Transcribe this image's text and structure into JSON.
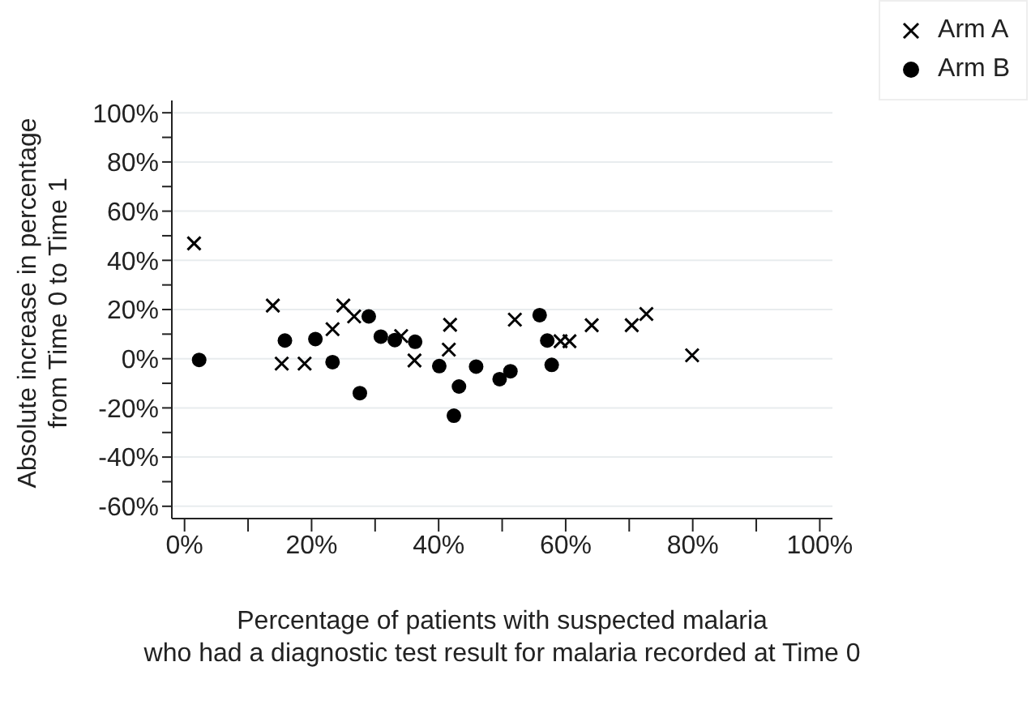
{
  "chart_data": {
    "type": "scatter",
    "xlabel": "Percentage of patients with suspected malaria\nwho had a diagnostic test result for malaria recorded at Time 0",
    "ylabel": "Absolute increase in percentage\nfrom Time 0 to Time 1",
    "xlim": [
      -2,
      102
    ],
    "ylim": [
      -65,
      105
    ],
    "xticks": [
      {
        "value": 0,
        "label": "0%"
      },
      {
        "value": 10,
        "label": null
      },
      {
        "value": 20,
        "label": "20%"
      },
      {
        "value": 30,
        "label": null
      },
      {
        "value": 40,
        "label": "40%"
      },
      {
        "value": 50,
        "label": null
      },
      {
        "value": 60,
        "label": "60%"
      },
      {
        "value": 70,
        "label": null
      },
      {
        "value": 80,
        "label": "80%"
      },
      {
        "value": 90,
        "label": null
      },
      {
        "value": 100,
        "label": "100%"
      }
    ],
    "yticks": [
      {
        "value": -60,
        "label": "-60%"
      },
      {
        "value": -50,
        "label": null
      },
      {
        "value": -40,
        "label": "-40%"
      },
      {
        "value": -30,
        "label": null
      },
      {
        "value": -20,
        "label": "-20%"
      },
      {
        "value": -10,
        "label": null
      },
      {
        "value": 0,
        "label": "0%"
      },
      {
        "value": 10,
        "label": null
      },
      {
        "value": 20,
        "label": "20%"
      },
      {
        "value": 30,
        "label": null
      },
      {
        "value": 40,
        "label": "40%"
      },
      {
        "value": 50,
        "label": null
      },
      {
        "value": 60,
        "label": "60%"
      },
      {
        "value": 70,
        "label": null
      },
      {
        "value": 80,
        "label": "80%"
      },
      {
        "value": 90,
        "label": null
      },
      {
        "value": 100,
        "label": "100%"
      }
    ],
    "grid": "y",
    "legend": "top right",
    "series": [
      {
        "name": "Arm A",
        "color": "#000000",
        "marker": "cross",
        "x": [
          1.5,
          13.9,
          15.3,
          18.9,
          23.3,
          25,
          26.7,
          34.1,
          36.2,
          41.8,
          41.6,
          52,
          59.2,
          60.6,
          64.1,
          70.4,
          72.7,
          79.9
        ],
        "values": [
          46.9,
          21.6,
          -2,
          -2,
          12,
          21.6,
          17.2,
          9.2,
          -0.7,
          13.8,
          3.7,
          15.9,
          7.1,
          7.1,
          13.6,
          13.6,
          18.2,
          1.4
        ]
      },
      {
        "name": "Arm B",
        "color": "#000000",
        "marker": "circle",
        "x": [
          2.3,
          15.8,
          20.6,
          23.3,
          27.6,
          29,
          30.9,
          33.1,
          36.3,
          40.1,
          42.4,
          43.2,
          45.9,
          49.6,
          51.3,
          55.9,
          57.1,
          57.8
        ],
        "values": [
          -0.5,
          7.4,
          8,
          -1.4,
          -14,
          17.2,
          9,
          7.6,
          6.9,
          -3,
          -23.2,
          -11.3,
          -3.2,
          -8.3,
          -5.1,
          17.7,
          7.4,
          -2.5
        ]
      }
    ]
  }
}
